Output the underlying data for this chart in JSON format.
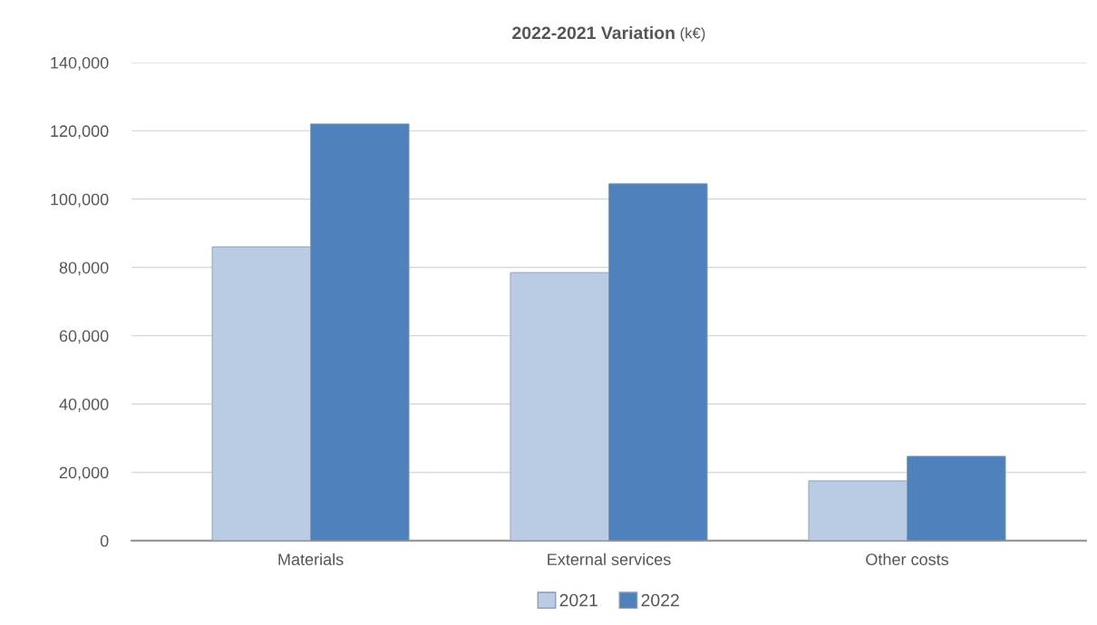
{
  "chart_data": {
    "type": "bar",
    "title": "2022-2021 Variation",
    "subtitle": "(k€)",
    "categories": [
      "Materials",
      "External services",
      "Other costs"
    ],
    "series": [
      {
        "name": "2021",
        "color": "#b9cce4",
        "values": [
          86000,
          78500,
          17500
        ]
      },
      {
        "name": "2022",
        "color": "#4f81bd",
        "values": [
          122000,
          104500,
          24700
        ]
      }
    ],
    "ylim": [
      0,
      140000
    ],
    "yticks": [
      0,
      {
        "value": 20000,
        "label": "20,000"
      },
      {
        "value": 40000,
        "label": "40,000"
      },
      {
        "value": 60000,
        "label": "60,000"
      },
      {
        "value": 80000,
        "label": "80,000"
      },
      {
        "value": 100000,
        "label": "100,000"
      },
      {
        "value": 120000,
        "label": "120,000"
      },
      {
        "value": 140000,
        "label": "140,000"
      }
    ],
    "grid": "y",
    "legend": "bottom"
  }
}
